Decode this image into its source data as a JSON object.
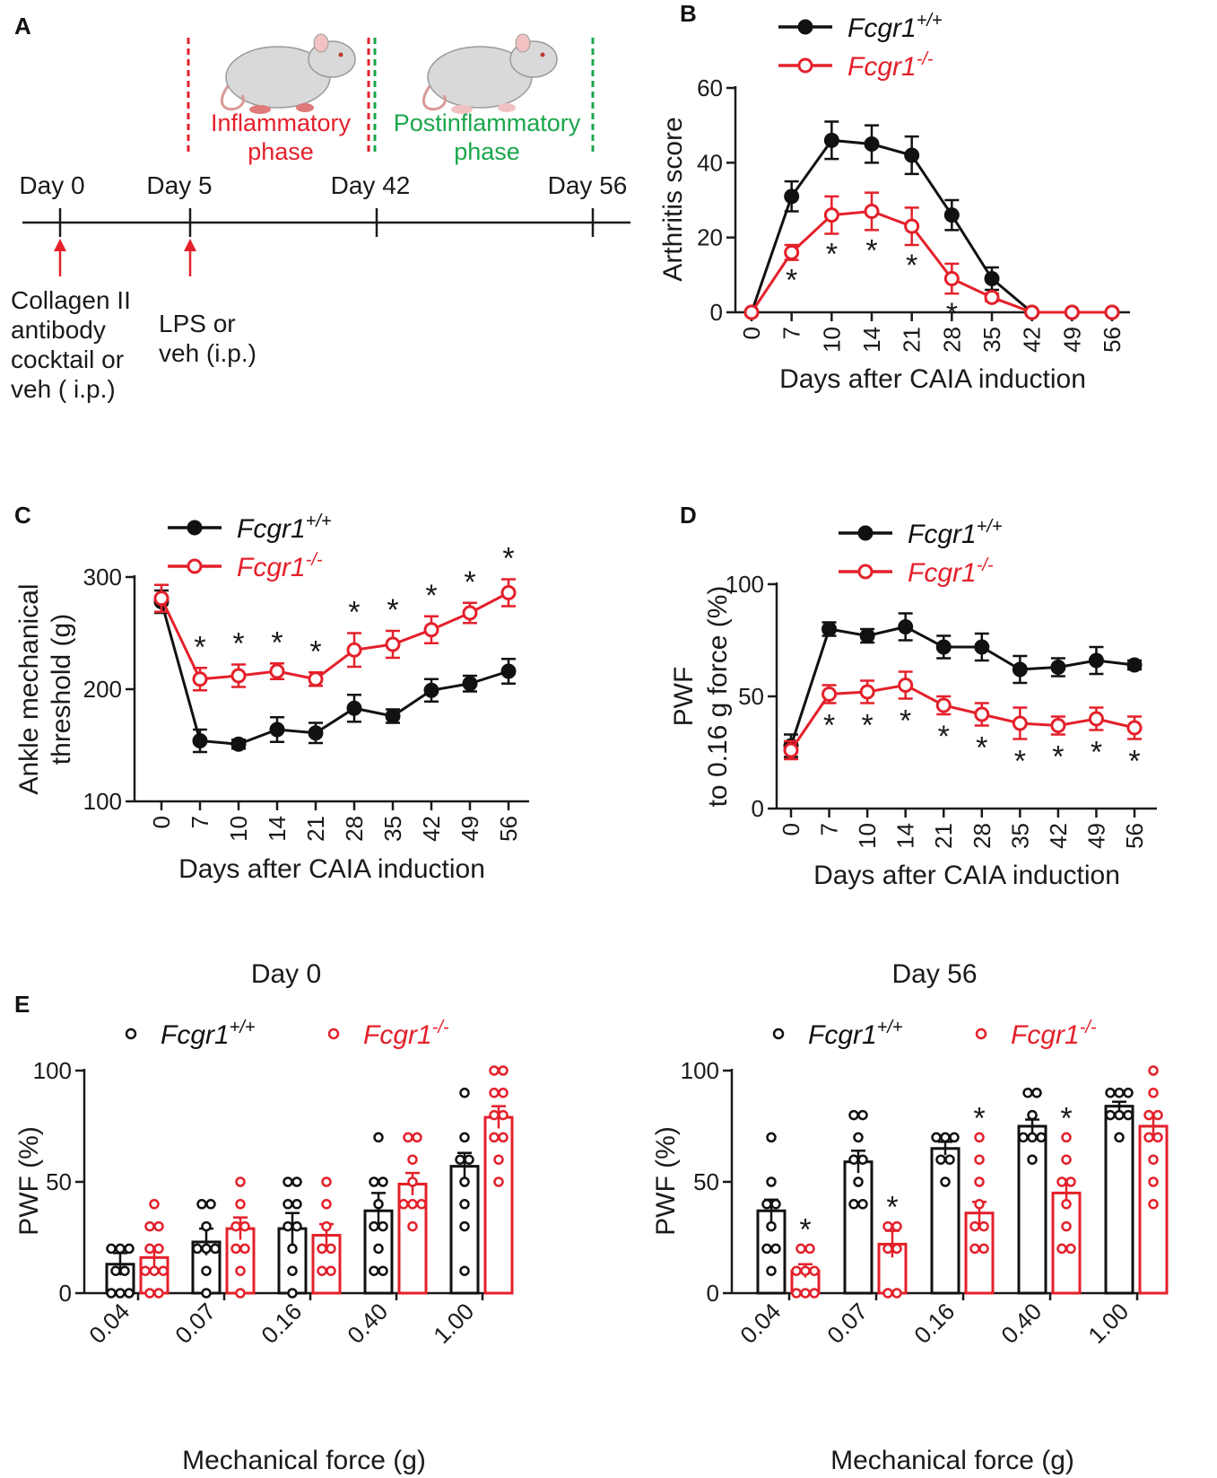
{
  "colors": {
    "wt": "#111111",
    "ko": "#e4202a",
    "green": "#1aa64b",
    "red_line": "#e4202a"
  },
  "panelA": {
    "letter": "A",
    "phase1": [
      "Inflammatory",
      "phase"
    ],
    "phase2": [
      "Postinflammatory",
      "phase"
    ],
    "days": [
      "Day 0",
      "Day 5",
      "Day 42",
      "Day 56"
    ],
    "note1": [
      "Collagen II",
      "antibody",
      "cocktail or",
      "veh ( i.p.)"
    ],
    "note2": [
      "LPS or",
      "veh (i.p.)"
    ]
  },
  "legend": {
    "wt_base": "Fcgr1",
    "wt_sup": "+/+",
    "ko_base": "Fcgr1",
    "ko_sup": "-/-"
  },
  "chart_data": [
    {
      "panel": "B",
      "type": "line",
      "title": "",
      "xlabel": "Days after CAIA induction",
      "ylabel": "Arthritis score",
      "categories": [
        "0",
        "7",
        "10",
        "14",
        "21",
        "28",
        "35",
        "42",
        "49",
        "56"
      ],
      "ylim": [
        0,
        60
      ],
      "yticks": [
        0,
        20,
        40,
        60
      ],
      "series": [
        {
          "name": "Fcgr1+/+",
          "values": [
            0,
            31,
            46,
            45,
            42,
            26,
            9,
            0,
            0,
            0
          ],
          "err": [
            0,
            4,
            5,
            5,
            5,
            4,
            3,
            0,
            0,
            0
          ]
        },
        {
          "name": "Fcgr1-/-",
          "values": [
            0,
            16,
            26,
            27,
            23,
            9,
            4,
            0,
            0,
            0
          ],
          "err": [
            0,
            2,
            5,
            5,
            5,
            4,
            1,
            0,
            0,
            0
          ]
        }
      ],
      "significance": [
        "7",
        "10",
        "14",
        "21",
        "28"
      ]
    },
    {
      "panel": "C",
      "type": "line",
      "title": "",
      "xlabel": "Days after CAIA induction",
      "ylabel": [
        "Ankle mechanical",
        "threshold (g)"
      ],
      "categories": [
        "0",
        "7",
        "10",
        "14",
        "21",
        "28",
        "35",
        "42",
        "49",
        "56"
      ],
      "ylim": [
        100,
        300
      ],
      "yticks": [
        100,
        200,
        300
      ],
      "series": [
        {
          "name": "Fcgr1+/+",
          "values": [
            278,
            154,
            151,
            164,
            161,
            183,
            176,
            199,
            205,
            216
          ],
          "err": [
            10,
            10,
            4,
            11,
            9,
            12,
            6,
            10,
            7,
            11
          ]
        },
        {
          "name": "Fcgr1-/-",
          "values": [
            281,
            209,
            212,
            216,
            209,
            235,
            240,
            253,
            268,
            286
          ],
          "err": [
            12,
            10,
            10,
            7,
            6,
            15,
            12,
            12,
            9,
            12
          ]
        }
      ],
      "significance": [
        "7",
        "10",
        "14",
        "21",
        "28",
        "35",
        "42",
        "49",
        "56"
      ]
    },
    {
      "panel": "D",
      "type": "line",
      "title": "",
      "xlabel": "Days after CAIA induction",
      "ylabel": [
        "PWF",
        "to 0.16 g force (%)"
      ],
      "categories": [
        "0",
        "7",
        "10",
        "14",
        "21",
        "28",
        "35",
        "42",
        "49",
        "56"
      ],
      "ylim": [
        0,
        100
      ],
      "yticks": [
        0,
        50,
        100
      ],
      "series": [
        {
          "name": "Fcgr1+/+",
          "values": [
            28,
            80,
            77,
            81,
            72,
            72,
            62,
            63,
            66,
            64
          ],
          "err": [
            5,
            3,
            3,
            6,
            5,
            6,
            6,
            4,
            6,
            2
          ]
        },
        {
          "name": "Fcgr1-/-",
          "values": [
            26,
            51,
            52,
            55,
            46,
            42,
            38,
            37,
            40,
            36
          ],
          "err": [
            4,
            4,
            5,
            6,
            4,
            5,
            7,
            4,
            5,
            5
          ]
        }
      ],
      "significance": [
        "7",
        "10",
        "14",
        "21",
        "28",
        "35",
        "42",
        "49",
        "56"
      ]
    },
    {
      "panel": "E1",
      "type": "bar",
      "title": "Day 0",
      "xlabel": "Mechanical force (g)",
      "ylabel": "PWF (%)",
      "categories": [
        "0.04",
        "0.07",
        "0.16",
        "0.40",
        "1.00"
      ],
      "ylim": [
        0,
        100
      ],
      "yticks": [
        0,
        50,
        100
      ],
      "series": [
        {
          "name": "Fcgr1+/+",
          "values": [
            13,
            23,
            29,
            37,
            57
          ],
          "err": [
            5,
            6,
            7,
            8,
            6
          ],
          "points": [
            [
              0,
              0,
              0,
              10,
              10,
              20,
              20,
              20
            ],
            [
              0,
              10,
              20,
              20,
              20,
              30,
              40,
              40
            ],
            [
              0,
              10,
              20,
              30,
              30,
              40,
              40,
              50,
              50
            ],
            [
              10,
              10,
              20,
              30,
              30,
              40,
              50,
              50,
              70
            ],
            [
              10,
              30,
              40,
              50,
              60,
              60,
              70,
              90
            ]
          ]
        },
        {
          "name": "Fcgr1-/-",
          "values": [
            16,
            29,
            26,
            49,
            79
          ],
          "err": [
            4,
            5,
            5,
            5,
            5
          ],
          "points": [
            [
              0,
              0,
              10,
              10,
              10,
              20,
              20,
              30,
              30,
              40
            ],
            [
              0,
              10,
              20,
              20,
              30,
              30,
              40,
              50
            ],
            [
              10,
              10,
              20,
              20,
              30,
              40,
              50
            ],
            [
              30,
              40,
              40,
              40,
              50,
              60,
              70,
              70
            ],
            [
              50,
              60,
              70,
              70,
              80,
              80,
              90,
              90,
              100,
              100
            ]
          ]
        }
      ]
    },
    {
      "panel": "E2",
      "type": "bar",
      "title": "Day 56",
      "xlabel": "Mechanical force (g)",
      "ylabel": "PWF (%)",
      "categories": [
        "0.04",
        "0.07",
        "0.16",
        "0.40",
        "1.00"
      ],
      "ylim": [
        0,
        100
      ],
      "yticks": [
        0,
        50,
        100
      ],
      "series": [
        {
          "name": "Fcgr1+/+",
          "values": [
            37,
            59,
            65,
            75,
            84
          ],
          "err": [
            5,
            5,
            3,
            3,
            2
          ],
          "points": [
            [
              10,
              20,
              20,
              30,
              40,
              40,
              50,
              70
            ],
            [
              40,
              40,
              50,
              60,
              60,
              70,
              80,
              80
            ],
            [
              50,
              60,
              60,
              70,
              70,
              70
            ],
            [
              60,
              70,
              70,
              70,
              80,
              90,
              90
            ],
            [
              70,
              80,
              80,
              80,
              90,
              90,
              90
            ]
          ]
        },
        {
          "name": "Fcgr1-/-",
          "values": [
            10,
            22,
            36,
            45,
            75
          ],
          "err": [
            3,
            6,
            5,
            6,
            5
          ],
          "points": [
            [
              0,
              0,
              0,
              10,
              10,
              10,
              20,
              20
            ],
            [
              0,
              0,
              20,
              20,
              30,
              30
            ],
            [
              20,
              20,
              30,
              30,
              40,
              50,
              60,
              70
            ],
            [
              20,
              20,
              30,
              40,
              50,
              50,
              60,
              70
            ],
            [
              40,
              50,
              60,
              70,
              70,
              80,
              80,
              90,
              100
            ]
          ]
        }
      ],
      "significance": [
        "0.04",
        "0.07",
        "0.16",
        "0.40"
      ]
    }
  ]
}
